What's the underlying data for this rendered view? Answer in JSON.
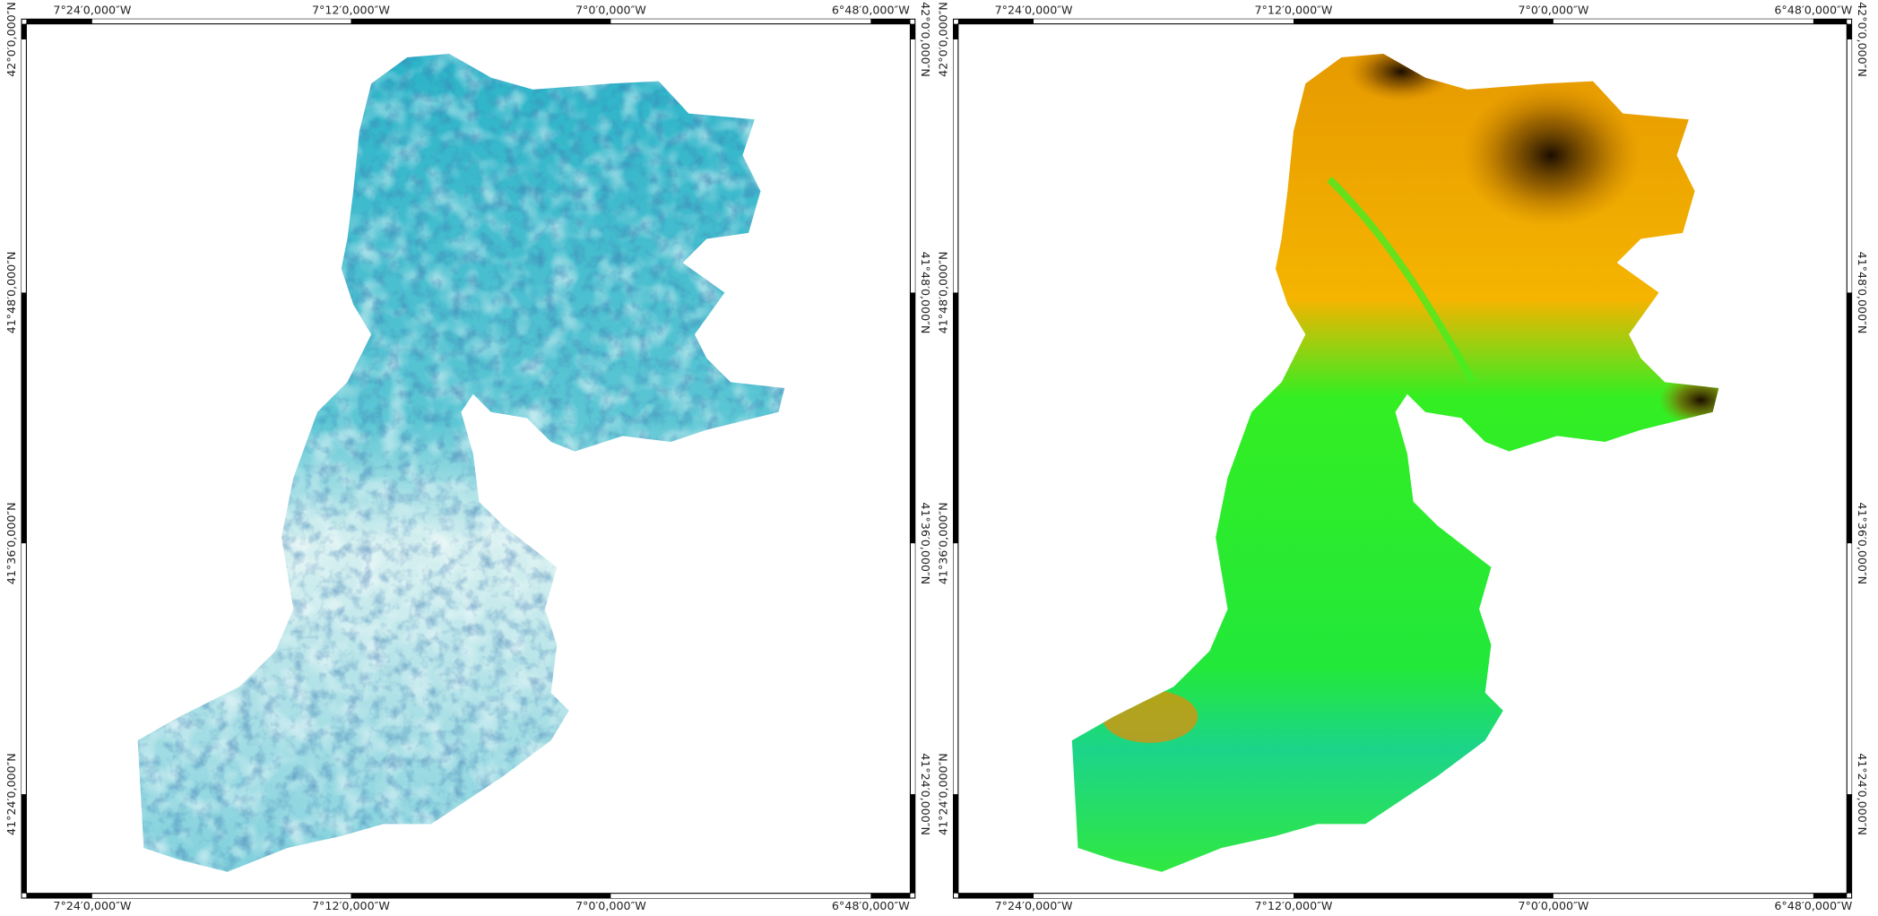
{
  "graticule": {
    "longitudes": [
      "7°24′0,000″W",
      "7°12′0,000″W",
      "7°0′0,000″W",
      "6°48′0,000″W"
    ],
    "latitudes": [
      "42°0′0,000″N",
      "41°48′0,000″N",
      "41°36′0,000″N",
      "41°24′0,000″N"
    ]
  }
}
